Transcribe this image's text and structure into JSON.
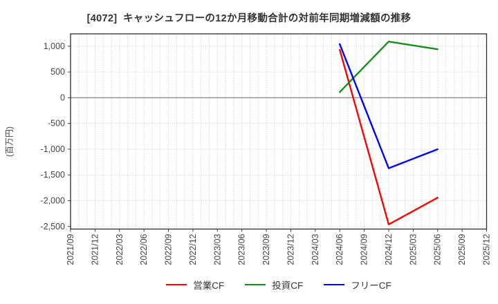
{
  "title": "[4072]  キャッシュフローの12か月移動合計の対前年同期増減額の推移",
  "ylabel": "(百万円)",
  "colors": {
    "background": "#ffffff",
    "title_text": "#333333",
    "tick_text": "#444444",
    "frame": "#2b2b2b",
    "grid": "#b8b8b8",
    "zero_line": "#8c8c8c",
    "operating_cf": "#ff0000",
    "investing_cf": "#1a8c1a",
    "free_cf": "#0000ff"
  },
  "chart_data": {
    "type": "line",
    "title": "[4072]  キャッシュフローの12か月移動合計の対前年同期増減額の推移",
    "xlabel": "",
    "ylabel": "(百万円)",
    "x_categories": [
      "2021/09",
      "2021/12",
      "2022/03",
      "2022/06",
      "2022/09",
      "2022/12",
      "2023/03",
      "2023/06",
      "2023/09",
      "2023/12",
      "2024/03",
      "2024/06",
      "2024/09",
      "2024/12",
      "2025/03",
      "2025/06",
      "2025/09",
      "2025/12"
    ],
    "y_ticks": {
      "labels": [
        "1,000",
        "500",
        "0",
        "-500",
        "-1,000",
        "-1,500",
        "-2,000",
        "-2,500"
      ],
      "values": [
        1000,
        500,
        0,
        -500,
        -1000,
        -1500,
        -2000,
        -2500
      ]
    },
    "ylim": [
      -2550,
      1240
    ],
    "grid": "dotted light-gray grid; vertical minor gridlines monthly (3 per quarter); solid gray zero line",
    "legend_position": "bottom-center",
    "series": [
      {
        "id": "operating-cf",
        "name": "営業CF",
        "color": "#ff0000",
        "points": [
          {
            "x": "2024/06",
            "y": 930
          },
          {
            "x": "2024/12",
            "y": -2460
          },
          {
            "x": "2025/06",
            "y": -1940
          }
        ]
      },
      {
        "id": "investing-cf",
        "name": "投資CF",
        "color": "#1a8c1a",
        "points": [
          {
            "x": "2024/06",
            "y": 110
          },
          {
            "x": "2024/12",
            "y": 1090
          },
          {
            "x": "2025/06",
            "y": 940
          }
        ]
      },
      {
        "id": "free-cf",
        "name": "フリーCF",
        "color": "#0000ff",
        "points": [
          {
            "x": "2024/06",
            "y": 1040
          },
          {
            "x": "2024/12",
            "y": -1370
          },
          {
            "x": "2025/06",
            "y": -1000
          }
        ]
      }
    ]
  }
}
